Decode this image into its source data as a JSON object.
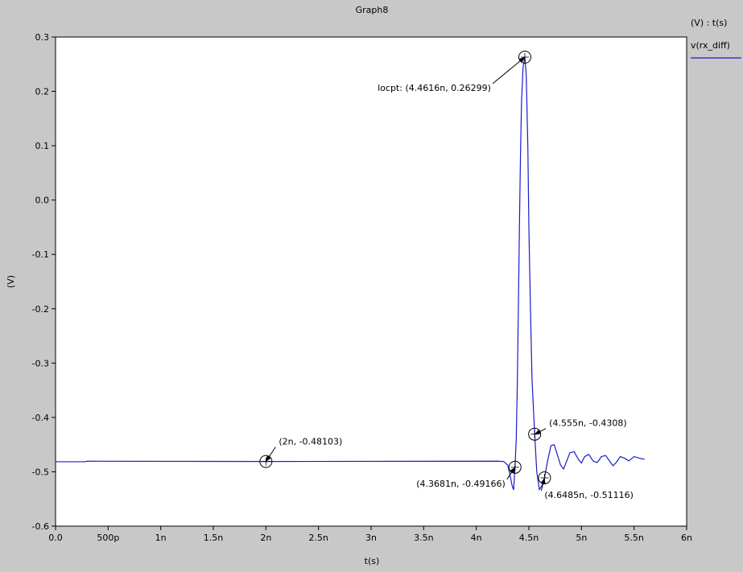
{
  "chart_data": {
    "type": "line",
    "title": "Graph8",
    "xlabel": "t(s)",
    "ylabel": "(V)",
    "legend_header": "(V) : t(s)",
    "legend_position": "top-right",
    "grid": false,
    "x_unit": "s",
    "xlim": [
      0,
      6e-09
    ],
    "ylim": [
      -0.6,
      0.3
    ],
    "x_ticks": [
      {
        "value": 0,
        "label": "0.0"
      },
      {
        "value": 5e-10,
        "label": "500p"
      },
      {
        "value": 1e-09,
        "label": "1n"
      },
      {
        "value": 1.5e-09,
        "label": "1.5n"
      },
      {
        "value": 2e-09,
        "label": "2n"
      },
      {
        "value": 2.5e-09,
        "label": "2.5n"
      },
      {
        "value": 3e-09,
        "label": "3n"
      },
      {
        "value": 3.5e-09,
        "label": "3.5n"
      },
      {
        "value": 4e-09,
        "label": "4n"
      },
      {
        "value": 4.5e-09,
        "label": "4.5n"
      },
      {
        "value": 5e-09,
        "label": "5n"
      },
      {
        "value": 5.5e-09,
        "label": "5.5n"
      },
      {
        "value": 6e-09,
        "label": "6n"
      }
    ],
    "y_ticks": [
      {
        "value": 0.3,
        "label": "0.3"
      },
      {
        "value": 0.2,
        "label": "0.2"
      },
      {
        "value": 0.1,
        "label": "0.1"
      },
      {
        "value": 0.0,
        "label": "0.0"
      },
      {
        "value": -0.1,
        "label": "-0.1"
      },
      {
        "value": -0.2,
        "label": "-0.2"
      },
      {
        "value": -0.3,
        "label": "-0.3"
      },
      {
        "value": -0.4,
        "label": "-0.4"
      },
      {
        "value": -0.5,
        "label": "-0.5"
      },
      {
        "value": -0.6,
        "label": "-0.6"
      }
    ],
    "series": [
      {
        "name": "v(rx_diff)",
        "color": "#1a1acc",
        "points": [
          [
            0,
            -0.4815
          ],
          [
            2.8e-10,
            -0.4815
          ],
          [
            3e-10,
            -0.4805
          ],
          [
            2e-09,
            -0.48103
          ],
          [
            4.2e-09,
            -0.4805
          ],
          [
            4.26e-09,
            -0.481
          ],
          [
            4.3e-09,
            -0.488
          ],
          [
            4.32e-09,
            -0.505
          ],
          [
            4.34e-09,
            -0.525
          ],
          [
            4.355e-09,
            -0.533
          ],
          [
            4.3681e-09,
            -0.49166
          ],
          [
            4.38e-09,
            -0.44
          ],
          [
            4.39e-09,
            -0.34
          ],
          [
            4.4e-09,
            -0.2
          ],
          [
            4.41e-09,
            -0.05
          ],
          [
            4.42e-09,
            0.08
          ],
          [
            4.43e-09,
            0.18
          ],
          [
            4.445e-09,
            0.245
          ],
          [
            4.4616e-09,
            0.26299
          ],
          [
            4.475e-09,
            0.23
          ],
          [
            4.49e-09,
            0.1
          ],
          [
            4.5e-09,
            -0.05
          ],
          [
            4.515e-09,
            -0.2
          ],
          [
            4.53e-09,
            -0.33
          ],
          [
            4.555e-09,
            -0.4308
          ],
          [
            4.575e-09,
            -0.5
          ],
          [
            4.6e-09,
            -0.533
          ],
          [
            4.625e-09,
            -0.525
          ],
          [
            4.6485e-09,
            -0.51116
          ],
          [
            4.68e-09,
            -0.478
          ],
          [
            4.71e-09,
            -0.452
          ],
          [
            4.74e-09,
            -0.45
          ],
          [
            4.77e-09,
            -0.468
          ],
          [
            4.8e-09,
            -0.487
          ],
          [
            4.83e-09,
            -0.495
          ],
          [
            4.86e-09,
            -0.48
          ],
          [
            4.89e-09,
            -0.465
          ],
          [
            4.93e-09,
            -0.463
          ],
          [
            4.97e-09,
            -0.477
          ],
          [
            5e-09,
            -0.484
          ],
          [
            5.03e-09,
            -0.472
          ],
          [
            5.07e-09,
            -0.468
          ],
          [
            5.11e-09,
            -0.48
          ],
          [
            5.15e-09,
            -0.483
          ],
          [
            5.19e-09,
            -0.472
          ],
          [
            5.23e-09,
            -0.47
          ],
          [
            5.27e-09,
            -0.481
          ],
          [
            5.3e-09,
            -0.489
          ],
          [
            5.33e-09,
            -0.483
          ],
          [
            5.37e-09,
            -0.472
          ],
          [
            5.41e-09,
            -0.475
          ],
          [
            5.45e-09,
            -0.48
          ],
          [
            5.5e-09,
            -0.472
          ],
          [
            5.55e-09,
            -0.475
          ],
          [
            5.6e-09,
            -0.477
          ]
        ]
      }
    ],
    "markers": [
      {
        "x": 4.4616e-09,
        "y": 0.26299,
        "label": "locpt: (4.4616n, 0.26299)",
        "anchor": "end",
        "dx": -42,
        "dy": 42
      },
      {
        "x": 2e-09,
        "y": -0.48103,
        "label": "(2n, -0.48103)",
        "anchor": "start",
        "dx": 16,
        "dy": -21
      },
      {
        "x": 4.555e-09,
        "y": -0.4308,
        "label": "(4.555n, -0.4308)",
        "anchor": "start",
        "dx": 18,
        "dy": -10
      },
      {
        "x": 4.3681e-09,
        "y": -0.49166,
        "label": "(4.3681n, -0.49166)",
        "anchor": "end",
        "dx": -12,
        "dy": 24
      },
      {
        "x": 4.6485e-09,
        "y": -0.51116,
        "label": "(4.6485n, -0.51116)",
        "anchor": "start",
        "dx": 0,
        "dy": 25
      }
    ]
  }
}
